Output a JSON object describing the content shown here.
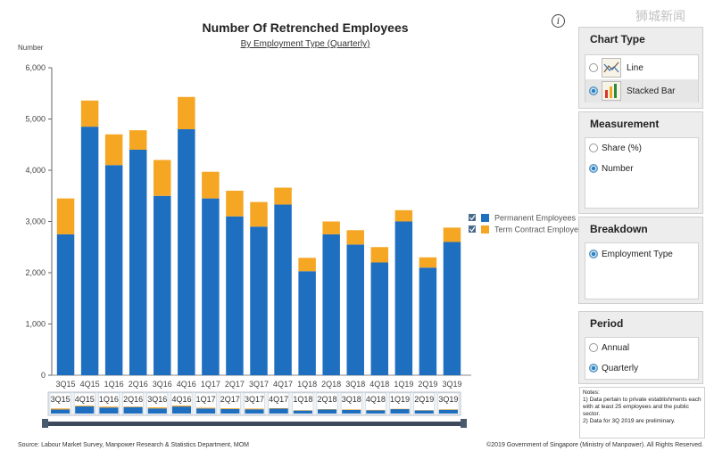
{
  "chart_data": {
    "type": "bar",
    "stacked": true,
    "title": "Number Of Retrenched Employees",
    "subtitle": "By Employment Type (Quarterly)",
    "ylabel": "Number",
    "ylim": [
      0,
      6000
    ],
    "yticks": [
      0,
      1000,
      2000,
      3000,
      4000,
      5000,
      6000
    ],
    "yticklabels": [
      "0",
      "1,000",
      "2,000",
      "3,000",
      "4,000",
      "5,000",
      "6,000"
    ],
    "categories": [
      "3Q15",
      "4Q15",
      "1Q16",
      "2Q16",
      "3Q16",
      "4Q16",
      "1Q17",
      "2Q17",
      "3Q17",
      "4Q17",
      "1Q18",
      "2Q18",
      "3Q18",
      "4Q18",
      "1Q19",
      "2Q19",
      "3Q19"
    ],
    "series": [
      {
        "name": "Permanent Employees",
        "color": "#1f6fc1",
        "values": [
          2750,
          4850,
          4100,
          4400,
          3500,
          4800,
          3450,
          3100,
          2900,
          3330,
          2030,
          2750,
          2550,
          2200,
          3000,
          2100,
          2600
        ]
      },
      {
        "name": "Term Contract Employees",
        "color": "#f5a623",
        "values": [
          700,
          510,
          600,
          380,
          700,
          630,
          520,
          500,
          480,
          330,
          260,
          250,
          280,
          300,
          220,
          200,
          280
        ]
      }
    ],
    "legend_position": "right",
    "grid": false
  },
  "source_text": "Source: Labour Market Survey, Manpower Research & Statistics Department, MOM",
  "copyright_text": "©2019 Government of Singapore (Ministry of Manpower). All Rights Reserved.",
  "info_label": "i",
  "watermark": "狮城新闻",
  "panels": {
    "chart_type": {
      "title": "Chart Type",
      "options": [
        "Line",
        "Stacked Bar"
      ],
      "selected": "Stacked Bar"
    },
    "measurement": {
      "title": "Measurement",
      "options": [
        "Share (%)",
        "Number"
      ],
      "selected": "Number"
    },
    "breakdown": {
      "title": "Breakdown",
      "options": [
        "Employment Type"
      ],
      "selected": "Employment Type"
    },
    "period": {
      "title": "Period",
      "options": [
        "Annual",
        "Quarterly"
      ],
      "selected": "Quarterly"
    }
  },
  "notes": {
    "title": "Notes:",
    "lines": [
      "1) Data pertain to private establishments each with at least 25 employees and the public sector.",
      "2) Data for 3Q 2019 are preliminary."
    ]
  }
}
